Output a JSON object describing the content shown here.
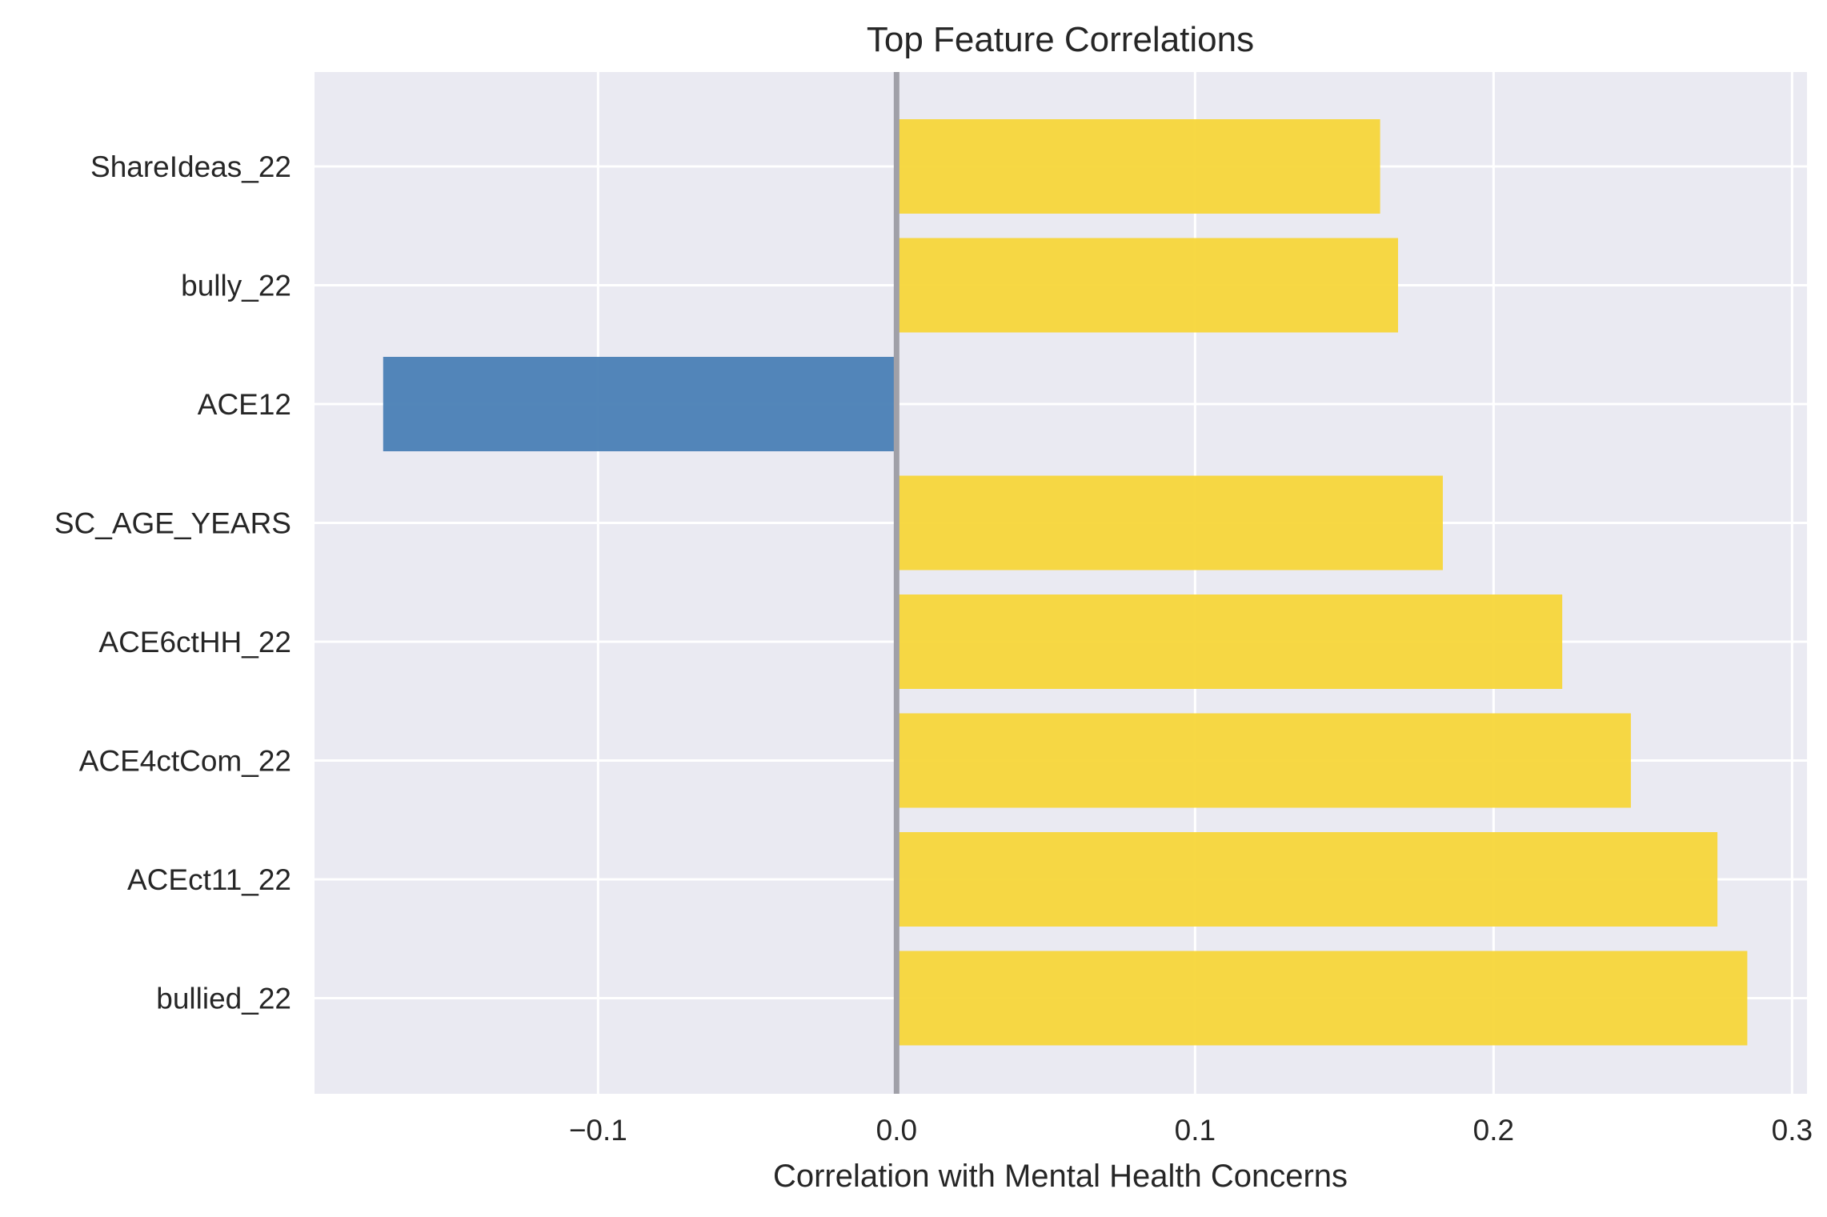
{
  "chart_data": {
    "type": "bar",
    "orientation": "horizontal",
    "title": "Top Feature Correlations",
    "xlabel": "Correlation with Mental Health Concerns",
    "ylabel": "",
    "categories": [
      "ShareIdeas_22",
      "bully_22",
      "ACE12",
      "SC_AGE_YEARS",
      "ACE6ctHH_22",
      "ACE4ctCom_22",
      "ACEct11_22",
      "bullied_22"
    ],
    "values": [
      0.162,
      0.168,
      -0.172,
      0.183,
      0.223,
      0.246,
      0.275,
      0.285
    ],
    "xlim": [
      -0.195,
      0.305
    ],
    "xticks": [
      -0.1,
      0.0,
      0.1,
      0.2,
      0.3
    ],
    "xtick_labels": [
      "−0.1",
      "0.0",
      "0.1",
      "0.2",
      "0.3"
    ],
    "grid": true,
    "zero_line": true,
    "colors": {
      "positive": "#f7d63a",
      "negative": "#4a7fb5",
      "background": "#eaeaf2",
      "grid": "#ffffff",
      "zero_line": "#a0a0a8"
    }
  }
}
